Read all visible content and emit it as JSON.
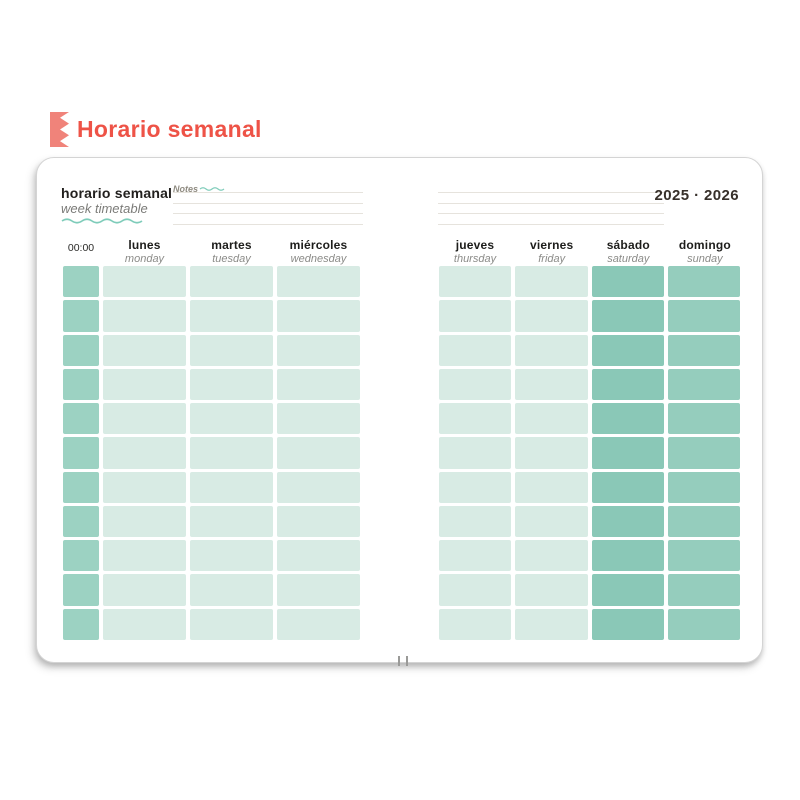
{
  "title_bar": {
    "title": "Horario semanal"
  },
  "notebook": {
    "page_header": {
      "title_es": "horario semanal",
      "title_en": "week timetable",
      "notes_label": "Notes",
      "year_range": "2025 · 2026"
    },
    "time_column": {
      "label": "00:00",
      "cell_color": "#9cd2c2"
    },
    "left_page": {
      "days": [
        {
          "es": "lunes",
          "en": "monday",
          "cell_color": "#d8ebe4"
        },
        {
          "es": "martes",
          "en": "tuesday",
          "cell_color": "#d8ebe4"
        },
        {
          "es": "miércoles",
          "en": "wednesday",
          "cell_color": "#d8ebe4"
        }
      ]
    },
    "right_page": {
      "days": [
        {
          "es": "jueves",
          "en": "thursday",
          "cell_color": "#d8ebe4"
        },
        {
          "es": "viernes",
          "en": "friday",
          "cell_color": "#d8ebe4"
        },
        {
          "es": "sábado",
          "en": "saturday",
          "cell_color": "#8ac8b7"
        },
        {
          "es": "domingo",
          "en": "sunday",
          "cell_color": "#95cdbd"
        }
      ]
    },
    "grid": {
      "rows": 11
    }
  },
  "colors": {
    "accent_coral": "#ee5347",
    "bookmark_coral": "#f0837a",
    "teal_squiggle": "#7fccba",
    "weekday_cell": "#d8ebe4",
    "time_cell": "#9cd2c2",
    "saturday_cell": "#8ac8b7",
    "sunday_cell": "#95cdbd",
    "notes_line": "#e6e3dd"
  }
}
